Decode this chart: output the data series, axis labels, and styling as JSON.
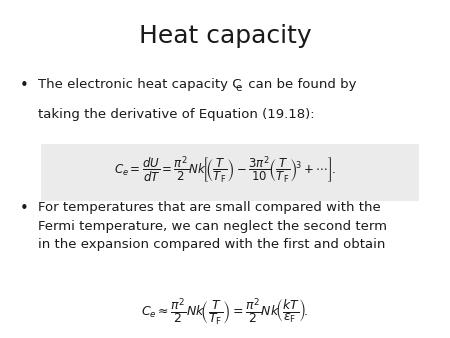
{
  "title": "Heat capacity",
  "title_fontsize": 18,
  "background_color": "#ffffff",
  "text_color": "#1a1a1a",
  "bullet1_line1": "The electronic heat capacity C",
  "bullet1_line2": "taking the derivative of Equation (19.18):",
  "eq1": "$C_e = \\dfrac{dU}{dT} = \\dfrac{\\pi^2}{2}Nk\\!\\left[\\!\\left(\\dfrac{T}{T_{\\mathrm{F}}}\\right) - \\dfrac{3\\pi^2}{10}\\!\\left(\\dfrac{T}{T_{\\mathrm{F}}}\\right)^{\\!3} + \\cdots\\right]\\!.$",
  "bullet2": "For temperatures that are small compared with the\nFermi temperature, we can neglect the second term\nin the expansion compared with the first and obtain",
  "eq2": "$C_e \\approx \\dfrac{\\pi^2}{2}Nk\\!\\left(\\dfrac{T}{T_{\\mathrm{F}}}\\right) = \\dfrac{\\pi^2}{2}Nk\\!\\left(\\dfrac{kT}{\\varepsilon_{\\mathrm{F}}}\\right)\\!.$",
  "body_fontsize": 9.5,
  "eq1_fontsize": 8.5,
  "eq2_fontsize": 9.0,
  "eq_bg_color": "#d8d8d8"
}
